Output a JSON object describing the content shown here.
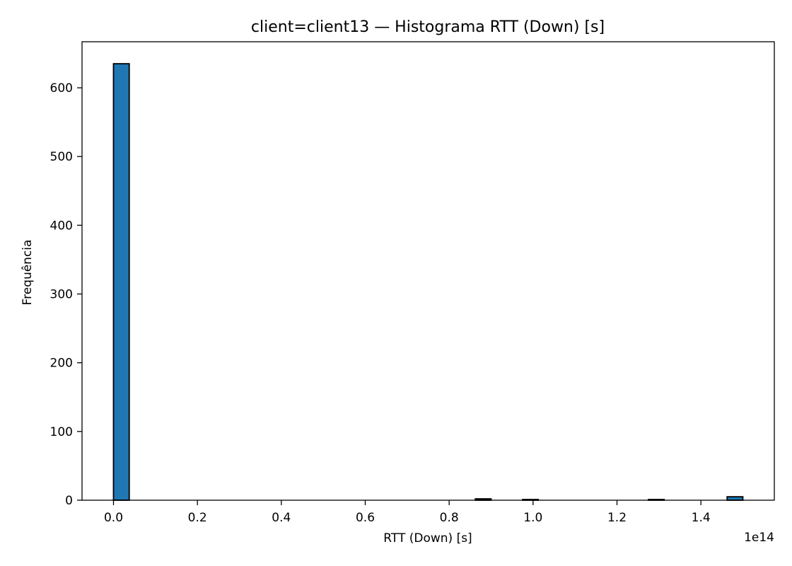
{
  "chart_data": {
    "type": "bar",
    "title": "client=client13 — Histograma RTT (Down) [s]",
    "xlabel": "RTT (Down) [s]",
    "ylabel": "Frequência",
    "x_offset_text": "1e14",
    "xlim": [
      -0.075,
      1.575
    ],
    "ylim": [
      0,
      667
    ],
    "x_ticks": [
      0.0,
      0.2,
      0.4,
      0.6,
      0.8,
      1.0,
      1.2,
      1.4
    ],
    "x_tick_labels": [
      "0.0",
      "0.2",
      "0.4",
      "0.6",
      "0.8",
      "1.0",
      "1.2",
      "1.4"
    ],
    "y_ticks": [
      0,
      100,
      200,
      300,
      400,
      500,
      600
    ],
    "y_tick_labels": [
      "0",
      "100",
      "200",
      "300",
      "400",
      "500",
      "600"
    ],
    "grid": false,
    "bin_width": 0.0375,
    "bins": [
      {
        "x_start": 0.0,
        "x_end": 0.0375,
        "count": 635
      },
      {
        "x_start": 0.8625,
        "x_end": 0.9,
        "count": 2
      },
      {
        "x_start": 0.975,
        "x_end": 1.0125,
        "count": 1
      },
      {
        "x_start": 1.275,
        "x_end": 1.3125,
        "count": 1
      },
      {
        "x_start": 1.4625,
        "x_end": 1.5,
        "count": 5
      }
    ],
    "colors": {
      "bar_fill": "#1f77b4",
      "bar_edge": "#000000"
    }
  }
}
